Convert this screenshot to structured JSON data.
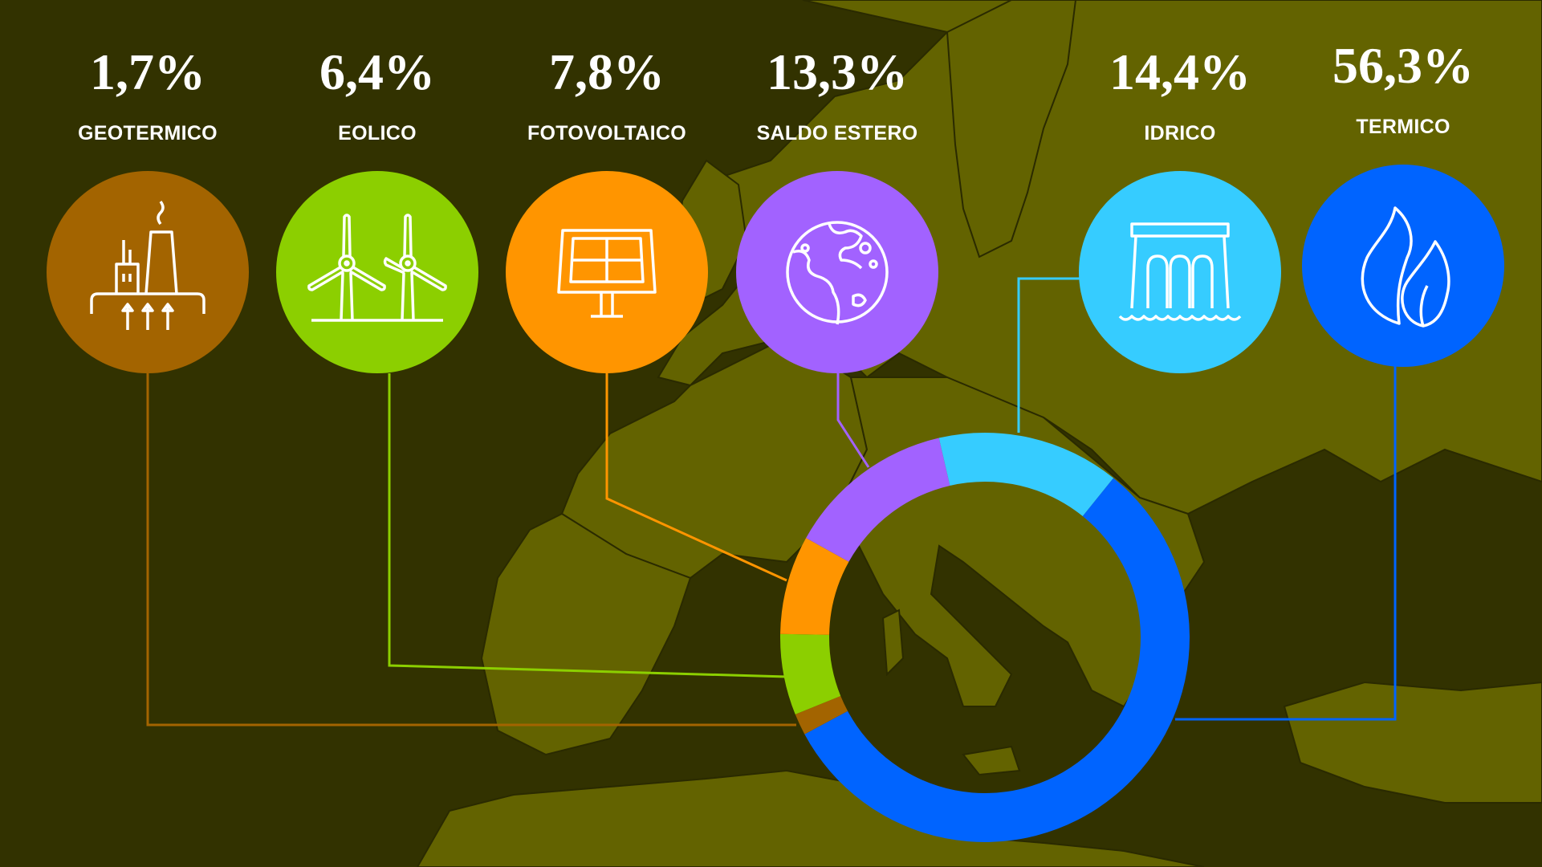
{
  "chart_data": {
    "type": "pie",
    "variant": "donut",
    "start_clockwise_from": "purple/cyan boundary slightly left of top",
    "legend_placement": "top",
    "categories": [
      "GEOTERMICO",
      "EOLICO",
      "FOTOVOLTAICO",
      "SALDO ESTERO",
      "IDRICO",
      "TERMICO"
    ],
    "values": [
      1.7,
      6.4,
      7.8,
      13.3,
      14.4,
      56.3
    ],
    "value_labels": [
      "1,7%",
      "6,4%",
      "7,8%",
      "13,3%",
      "14,4%",
      "56,3%"
    ],
    "colors": [
      "#a36400",
      "#8ccf00",
      "#ff9500",
      "#a262ff",
      "#36ccff",
      "#0064ff"
    ],
    "icons": [
      "geothermal-plant-icon",
      "wind-turbines-icon",
      "solar-panel-icon",
      "globe-icon",
      "hydro-dam-icon",
      "flame-icon"
    ]
  },
  "background": {
    "sea": "#323200",
    "land": "#636300",
    "borders": "#2a2a00",
    "depicts": "map of Europe"
  }
}
